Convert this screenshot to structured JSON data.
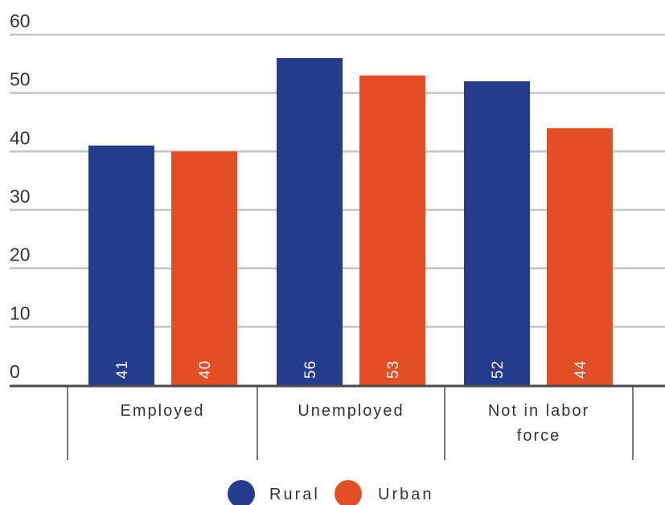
{
  "chart_data": {
    "type": "bar",
    "categories": [
      "Employed",
      "Unemployed",
      "Not in labor force"
    ],
    "category_lines": [
      [
        "Employed"
      ],
      [
        "Unemployed"
      ],
      [
        "Not in labor",
        "force"
      ]
    ],
    "series": [
      {
        "name": "Rural",
        "values": [
          41,
          56,
          52
        ],
        "color": "#253b8c"
      },
      {
        "name": "Urban",
        "values": [
          40,
          53,
          44
        ],
        "color": "#e44e25"
      }
    ],
    "ylim": [
      0,
      60
    ],
    "yticks": [
      0,
      10,
      20,
      30,
      40,
      50,
      60
    ],
    "grid": true,
    "legend_position": "bottom-center",
    "data_labels": "inside-bottom-rotated"
  }
}
